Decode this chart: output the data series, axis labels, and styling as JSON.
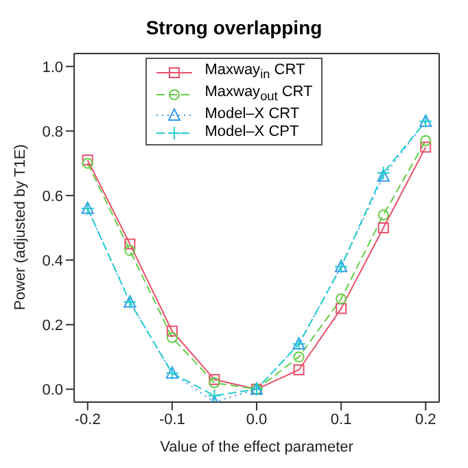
{
  "chart_data": {
    "type": "line",
    "title": "Strong overlapping",
    "xlabel": "Value of the effect parameter",
    "ylabel": "Power (adjusted by T1E)",
    "x": [
      -0.2,
      -0.15,
      -0.1,
      -0.05,
      0,
      0.05,
      0.1,
      0.15,
      0.2
    ],
    "series": [
      {
        "name": "Maxway$_{in}$ CRT",
        "color": "#e8506a",
        "marker": "square",
        "line_style": "solid",
        "values": [
          0.71,
          0.45,
          0.18,
          0.03,
          0.0,
          0.06,
          0.25,
          0.5,
          0.75
        ]
      },
      {
        "name": "Maxway$_{out}$ CRT",
        "color": "#66cc44",
        "marker": "circle",
        "line_style": "dashed",
        "values": [
          0.7,
          0.43,
          0.16,
          0.02,
          0.0,
          0.1,
          0.28,
          0.54,
          0.77
        ]
      },
      {
        "name": "Model–X CRT",
        "color": "#3399ee",
        "marker": "triangle",
        "line_style": "dotted",
        "values": [
          0.56,
          0.27,
          0.05,
          -0.04,
          0.0,
          0.14,
          0.38,
          0.66,
          0.83
        ]
      },
      {
        "name": "Model–X CPT",
        "color": "#22cccc",
        "marker": "cross",
        "line_style": "dashed",
        "values": [
          0.56,
          0.27,
          0.05,
          -0.02,
          0.0,
          0.14,
          0.38,
          0.67,
          0.83
        ]
      }
    ],
    "xlim": [
      -0.216,
      0.216
    ],
    "xticks": [
      -0.2,
      -0.1,
      {
        "value": 0,
        "label": "0.0"
      },
      0.1,
      0.2
    ],
    "ylim": [
      -0.04,
      1.04
    ],
    "yticks": [
      {
        "value": 0,
        "label": "0.0"
      },
      0.2,
      0.4,
      0.6,
      0.8,
      {
        "value": 1,
        "label": "1.0"
      }
    ],
    "grid": false,
    "legend": "top"
  }
}
